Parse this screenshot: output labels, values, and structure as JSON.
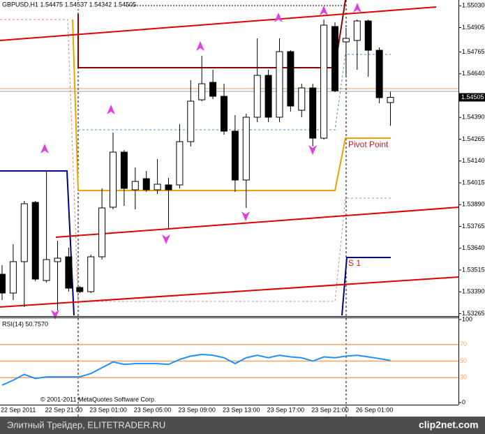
{
  "chart_data": [
    {
      "type": "candlestick",
      "title": "GBPUSD,H1  1.54475 1.54537 1.54342 1.54505",
      "categories": [
        "22 Sep 2011",
        null,
        null,
        null,
        "22 Sep 21:00",
        null,
        null,
        null,
        "23 Sep 01:00",
        null,
        null,
        null,
        "23 Sep 05:00",
        null,
        null,
        null,
        "23 Sep 09:00",
        null,
        null,
        null,
        "23 Sep 13:00",
        null,
        null,
        null,
        "23 Sep 17:00",
        null,
        null,
        null,
        "23 Sep 21:00",
        null,
        null,
        null,
        "26 Sep 01:00",
        null,
        null,
        null
      ],
      "open": [
        1.53491,
        1.53383,
        1.53563,
        1.53903,
        1.53455,
        1.53563,
        1.53591,
        1.53415,
        1.53391,
        1.53591,
        1.53875,
        1.54191,
        1.53975,
        1.54039,
        1.53975,
        1.54003,
        1.54003,
        1.54251,
        1.54491,
        1.54591,
        1.54511,
        1.54311,
        1.54031,
        1.54391,
        1.54631,
        1.54391,
        1.54767,
        1.54431,
        1.54559,
        1.54271,
        1.54911,
        1.54823,
        1.54831,
        1.54943,
        1.54775,
        1.54475
      ],
      "high": [
        1.53543,
        1.53663,
        1.53911,
        1.53911,
        1.54083,
        1.53683,
        1.53643,
        1.53423,
        1.53603,
        1.53983,
        1.54303,
        1.54203,
        1.54103,
        1.54083,
        1.54151,
        1.54043,
        1.54351,
        1.54603,
        1.54743,
        1.54663,
        1.54583,
        1.54403,
        1.54411,
        1.54843,
        1.54663,
        1.54843,
        1.54775,
        1.54583,
        1.54583,
        1.54951,
        1.54935,
        1.54903,
        1.54951,
        1.54951,
        1.54791,
        1.54537
      ],
      "low": [
        1.53343,
        1.53343,
        1.53303,
        1.53451,
        1.53443,
        1.53283,
        1.53391,
        1.53383,
        1.53383,
        1.53575,
        1.53863,
        1.53883,
        1.53863,
        1.53963,
        1.53951,
        1.53751,
        1.53983,
        1.54223,
        1.54483,
        1.54495,
        1.54291,
        1.53963,
        1.53871,
        1.54363,
        1.54363,
        1.54363,
        1.54423,
        1.54391,
        1.54223,
        1.54263,
        1.54535,
        1.54623,
        1.54663,
        1.54623,
        1.54471,
        1.54342
      ],
      "close": [
        1.53383,
        1.53563,
        1.53895,
        1.53463,
        1.53575,
        1.53583,
        1.53411,
        1.53391,
        1.53591,
        1.53871,
        1.54191,
        1.53983,
        1.54023,
        1.53975,
        1.54007,
        1.53975,
        1.54251,
        1.54483,
        1.54583,
        1.54511,
        1.54311,
        1.54031,
        1.54391,
        1.54631,
        1.54391,
        1.54767,
        1.54455,
        1.54559,
        1.54271,
        1.54919,
        1.54543,
        1.54843,
        1.54943,
        1.54775,
        1.54503,
        1.54505
      ],
      "up_color": "#ffffff",
      "down_color": "#000000",
      "ylim": [
        1.53255,
        1.55063
      ],
      "yticks": [
        {
          "value": 1.5503,
          "label": "1.55030"
        },
        1.54905,
        1.54765,
        {
          "value": 1.5464,
          "label": "1.54640"
        },
        {
          "value": 1.5439,
          "label": "1.54390"
        },
        1.54265,
        {
          "value": 1.5414,
          "label": "1.54140"
        },
        1.54015,
        {
          "value": 1.5389,
          "label": "1.53890"
        },
        1.53765,
        {
          "value": 1.5364,
          "label": "1.53640"
        },
        1.53515,
        {
          "value": 1.5339,
          "label": "1.53390"
        },
        1.53265
      ],
      "annotations": [
        "Pivot Point",
        "S 1"
      ],
      "copyright": "© 2001-2011 MetaQuotes Software Corp."
    },
    {
      "type": "line",
      "title": "RSI(14) 50.7570",
      "values": [
        21,
        27,
        34,
        29,
        31,
        31,
        31,
        31,
        35,
        42,
        49,
        46,
        47,
        47,
        47,
        46,
        52,
        56,
        58,
        57,
        54,
        47,
        54,
        57,
        54,
        57,
        55,
        54,
        50,
        55,
        54,
        56,
        57,
        55,
        53,
        50.757
      ],
      "color": "#1e90ff",
      "ylim": [
        0,
        100
      ],
      "yticks": [
        100,
        0
      ],
      "levels": [
        70,
        50,
        30
      ],
      "level_color": "#f4a460"
    }
  ],
  "footer": {
    "site": "Элитный Трейдер, ELITETRADER.RU",
    "logo": "clip2net.com"
  }
}
